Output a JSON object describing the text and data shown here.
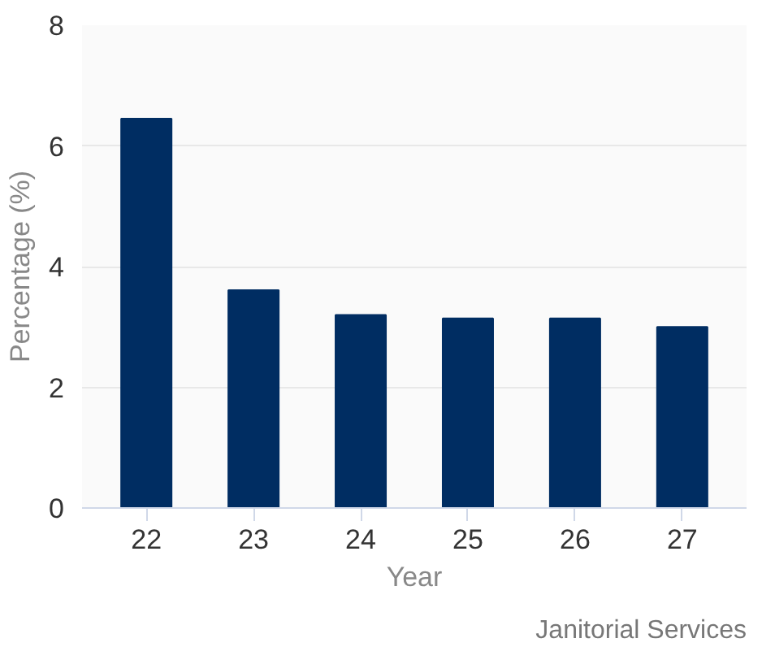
{
  "chart_data": {
    "type": "bar",
    "xlabel": "Year",
    "ylabel": "Percentage (%)",
    "categories": [
      "22",
      "23",
      "24",
      "25",
      "26",
      "27"
    ],
    "values": [
      6.45,
      3.61,
      3.2,
      3.14,
      3.14,
      3.0
    ],
    "color": "#002d62",
    "ylim": [
      0,
      8
    ],
    "yticks": [
      0,
      2,
      4,
      6,
      8
    ],
    "grid": "y",
    "annotations": [
      "Janitorial Services"
    ]
  }
}
